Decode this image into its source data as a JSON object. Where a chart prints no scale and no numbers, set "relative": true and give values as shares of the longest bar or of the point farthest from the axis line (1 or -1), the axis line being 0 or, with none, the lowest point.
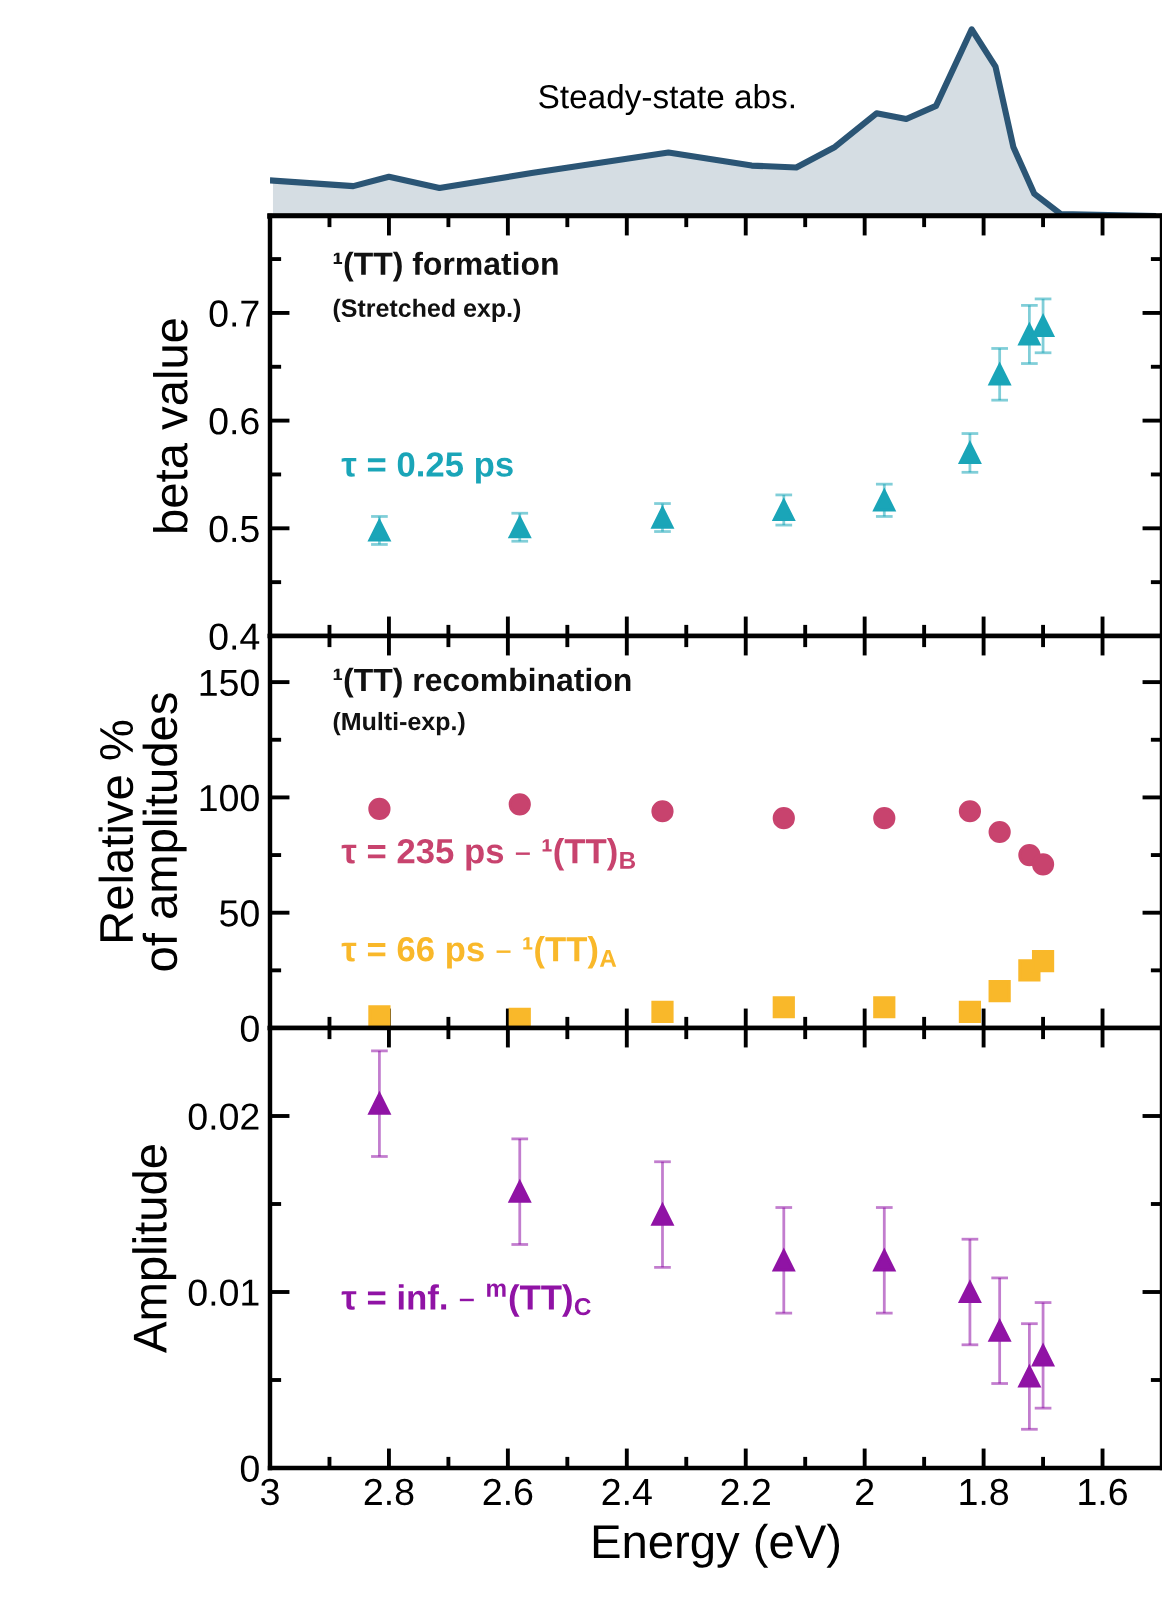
{
  "chart_data": [
    {
      "type": "area",
      "relative": true,
      "tick_labels": false,
      "xlim": [
        3,
        1.5
      ],
      "series": [
        {
          "name": "Steady-state abs.",
          "color": "#2b5575",
          "x": [
            2.995,
            2.86,
            2.8,
            2.715,
            2.56,
            2.33,
            2.19,
            2.115,
            2.05,
            1.98,
            1.93,
            1.88,
            1.82,
            1.78,
            1.75,
            1.715,
            1.67,
            1.515
          ],
          "values": [
            0.19,
            0.16,
            0.21,
            0.15,
            0.23,
            0.34,
            0.27,
            0.26,
            0.37,
            0.55,
            0.52,
            0.59,
            1,
            0.8,
            0.37,
            0.12,
            0.01,
            0
          ]
        }
      ]
    },
    {
      "type": "scatter",
      "marker": "triangle",
      "tick_labels": "y",
      "ylabel": "beta value",
      "annotations": [
        "¹(TT) formation",
        "(Stretched exp.)"
      ],
      "x": [
        2.816,
        2.58,
        2.34,
        2.136,
        1.967,
        1.823,
        1.773,
        1.723,
        1.7
      ],
      "series": [
        {
          "name": "τ = 0.25 ps",
          "color": "#1aa5b8",
          "values": [
            0.498,
            0.501,
            0.51,
            0.517,
            0.526,
            0.57,
            0.643,
            0.68,
            0.688
          ],
          "errors": [
            0.013,
            0.013,
            0.013,
            0.014,
            0.015,
            0.018,
            0.024,
            0.027,
            0.025
          ]
        }
      ],
      "xlim": [
        3,
        1.5
      ],
      "xticks": [
        3,
        {
          "value": 2.9,
          "label": null
        },
        2.8,
        {
          "value": 2.7,
          "label": null
        },
        2.6,
        {
          "value": 2.5,
          "label": null
        },
        2.4,
        {
          "value": 2.3,
          "label": null
        },
        2.2,
        {
          "value": 2.1,
          "label": null
        },
        2,
        {
          "value": 1.9,
          "label": null
        },
        1.8,
        {
          "value": 1.7,
          "label": null
        },
        1.6
      ],
      "ylim": [
        0.4,
        0.79
      ],
      "yticks": [
        0.4,
        {
          "value": 0.45,
          "label": null
        },
        0.5,
        {
          "value": 0.55,
          "label": null
        },
        0.6,
        {
          "value": 0.65,
          "label": null
        },
        0.7,
        {
          "value": 0.75,
          "label": null
        }
      ]
    },
    {
      "type": "scatter",
      "tick_labels": "y",
      "ylabel": "Relative %\nof amplitudes",
      "annotations": [
        "¹(TT) recombination",
        "(Multi-exp.)"
      ],
      "x": [
        2.816,
        2.58,
        2.34,
        2.136,
        1.967,
        1.823,
        1.773,
        1.723,
        1.7
      ],
      "series": [
        {
          "name": "τ = 235 ps – ¹(TT)$_{B}$",
          "color": "#c8436e",
          "marker": "circle",
          "values": [
            95,
            97,
            94,
            91,
            91,
            94,
            85,
            75,
            71
          ]
        },
        {
          "name": "τ = 66 ps – ¹(TT)$_{A}$",
          "color": "#f9b82a",
          "marker": "square",
          "values": [
            5,
            4,
            7,
            9,
            9,
            7,
            16,
            25,
            29
          ]
        }
      ],
      "xlim": [
        3,
        1.5
      ],
      "xticks": [
        3,
        {
          "value": 2.9,
          "label": null
        },
        2.8,
        {
          "value": 2.7,
          "label": null
        },
        2.6,
        {
          "value": 2.5,
          "label": null
        },
        2.4,
        {
          "value": 2.3,
          "label": null
        },
        2.2,
        {
          "value": 2.1,
          "label": null
        },
        2,
        {
          "value": 1.9,
          "label": null
        },
        1.8,
        {
          "value": 1.7,
          "label": null
        },
        1.6
      ],
      "ylim": [
        0,
        170
      ],
      "yticks": [
        0,
        {
          "value": 25,
          "label": null
        },
        50,
        {
          "value": 75,
          "label": null
        },
        100,
        {
          "value": 125,
          "label": null
        },
        150
      ]
    },
    {
      "type": "scatter",
      "marker": "triangle",
      "ylabel": "Amplitude",
      "xlabel": "Energy (eV)",
      "x": [
        2.816,
        2.58,
        2.34,
        2.136,
        1.967,
        1.823,
        1.773,
        1.723,
        1.7
      ],
      "series": [
        {
          "name": "τ = inf. – $^{m}$(TT)$_{C}$",
          "color": "#9013a5",
          "values": [
            0.0207,
            0.0157,
            0.0144,
            0.0118,
            0.0118,
            0.01,
            0.0078,
            0.0052,
            0.0064
          ],
          "errors": [
            0.003,
            0.003,
            0.003,
            0.003,
            0.003,
            0.003,
            0.003,
            0.003,
            0.003
          ]
        }
      ],
      "xlim": [
        3,
        1.5
      ],
      "xticks": [
        3,
        {
          "value": 2.9,
          "label": null
        },
        2.8,
        {
          "value": 2.7,
          "label": null
        },
        2.6,
        {
          "value": 2.5,
          "label": null
        },
        2.4,
        {
          "value": 2.3,
          "label": null
        },
        2.2,
        {
          "value": 2.1,
          "label": null
        },
        2,
        {
          "value": 1.9,
          "label": null
        },
        1.8,
        {
          "value": 1.7,
          "label": null
        },
        1.6
      ],
      "ylim": [
        0,
        0.025
      ],
      "yticks": [
        0,
        {
          "value": 0.005,
          "label": null
        },
        0.01,
        {
          "value": 0.015,
          "label": null
        },
        0.02
      ]
    }
  ]
}
